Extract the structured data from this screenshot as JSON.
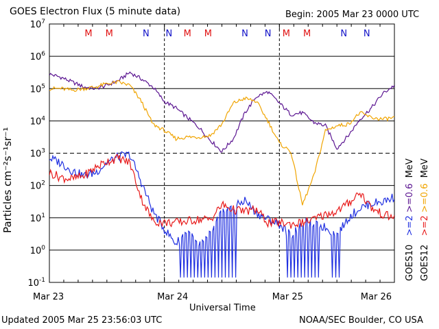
{
  "title": "GOES Electron Flux (5 minute data)",
  "begin_label": "Begin: 2005 Mar 23 0000 UTC",
  "updated_label": "Updated 2005 Mar 25 23:56:03 UTC",
  "credit": "NOAA/SEC Boulder, CO USA",
  "colors": {
    "g10_lt2": "#1f2fe0",
    "g12_lt2": "#e81b1b",
    "g10_gt06": "#5b1591",
    "g12_gt06": "#f0a400",
    "marker_m": "#e01010",
    "marker_n": "#1010c8"
  },
  "legend": {
    "goes10": {
      "sat": "GOES10",
      "lt2": ">=2",
      "gt06": ">=0.6",
      "unit": "MeV"
    },
    "goes12": {
      "sat": "GOES12",
      "lt2": ">=2",
      "gt06": ">=0.6",
      "unit": "MeV"
    }
  },
  "markers": [
    {
      "label": "M",
      "day": 0.34,
      "sat": "m"
    },
    {
      "label": "M",
      "day": 0.52,
      "sat": "m"
    },
    {
      "label": "N",
      "day": 0.84,
      "sat": "n"
    },
    {
      "label": "N",
      "day": 1.04,
      "sat": "n"
    },
    {
      "label": "M",
      "day": 1.2,
      "sat": "m"
    },
    {
      "label": "M",
      "day": 1.38,
      "sat": "m"
    },
    {
      "label": "N",
      "day": 1.7,
      "sat": "n"
    },
    {
      "label": "N",
      "day": 1.9,
      "sat": "n"
    },
    {
      "label": "M",
      "day": 2.06,
      "sat": "m"
    },
    {
      "label": "M",
      "day": 2.24,
      "sat": "m"
    },
    {
      "label": "N",
      "day": 2.56,
      "sat": "n"
    },
    {
      "label": "N",
      "day": 2.76,
      "sat": "n"
    }
  ],
  "chart_data": {
    "type": "line",
    "xlabel": "Universal Time",
    "ylabel": "Particles cm⁻²s⁻¹sr⁻¹",
    "xlim": [
      0,
      3
    ],
    "x_ticks": [
      {
        "label": "Mar 23",
        "day": 0
      },
      {
        "label": "Mar 24",
        "day": 1
      },
      {
        "label": "Mar 25",
        "day": 2
      },
      {
        "label": "Mar 26",
        "day": 3
      }
    ],
    "y_scale": "log",
    "ylim_exp": [
      -1,
      7
    ],
    "y_ticks": [
      {
        "label": "10",
        "exp": "-1",
        "value": -1
      },
      {
        "label": "10",
        "exp": "0",
        "value": 0
      },
      {
        "label": "10",
        "exp": "1",
        "value": 1
      },
      {
        "label": "10",
        "exp": "2",
        "value": 2
      },
      {
        "label": "10",
        "exp": "3",
        "value": 3
      },
      {
        "label": "10",
        "exp": "4",
        "value": 4
      },
      {
        "label": "10",
        "exp": "5",
        "value": 5
      },
      {
        "label": "10",
        "exp": "6",
        "value": 6
      },
      {
        "label": "10",
        "exp": "7",
        "value": 7
      }
    ],
    "series": [
      {
        "key": "g10_gt06",
        "name": "GOES10 >=0.6 MeV",
        "x": [
          0,
          0.1,
          0.2,
          0.3,
          0.4,
          0.5,
          0.6,
          0.7,
          0.8,
          0.9,
          1.0,
          1.1,
          1.2,
          1.3,
          1.4,
          1.5,
          1.6,
          1.7,
          1.8,
          1.9,
          2.0,
          2.1,
          2.2,
          2.3,
          2.4,
          2.5,
          2.6,
          2.7,
          2.8,
          2.9,
          3.0
        ],
        "log10": [
          5.45,
          5.35,
          5.2,
          5.05,
          5.0,
          5.1,
          5.25,
          5.5,
          5.3,
          5.05,
          4.6,
          4.4,
          4.1,
          3.8,
          3.4,
          3.05,
          3.45,
          4.25,
          4.75,
          4.9,
          4.55,
          4.2,
          4.25,
          3.95,
          3.85,
          3.15,
          3.55,
          4.05,
          4.4,
          4.85,
          5.1
        ]
      },
      {
        "key": "g12_gt06",
        "name": "GOES12 >=0.6 MeV",
        "x": [
          0,
          0.1,
          0.2,
          0.3,
          0.4,
          0.5,
          0.6,
          0.7,
          0.8,
          0.9,
          1.0,
          1.1,
          1.2,
          1.3,
          1.4,
          1.5,
          1.6,
          1.7,
          1.8,
          1.9,
          2.0,
          2.1,
          2.2,
          2.3,
          2.4,
          2.5,
          2.6,
          2.7,
          2.8,
          2.9,
          3.0
        ],
        "log10": [
          5.0,
          5.0,
          4.95,
          5.0,
          5.05,
          5.15,
          5.2,
          5.1,
          4.6,
          3.9,
          3.7,
          3.45,
          3.5,
          3.5,
          3.55,
          3.9,
          4.55,
          4.7,
          4.6,
          4.0,
          3.3,
          3.05,
          1.4,
          2.3,
          3.7,
          3.85,
          3.9,
          4.25,
          4.1,
          4.05,
          4.1
        ]
      },
      {
        "key": "g10_lt2",
        "name": "GOES10 >=2 MeV",
        "x": [
          0,
          0.1,
          0.2,
          0.3,
          0.4,
          0.5,
          0.6,
          0.7,
          0.8,
          0.9,
          1.0,
          1.1,
          1.2,
          1.3,
          1.4,
          1.5,
          1.6,
          1.7,
          1.8,
          1.9,
          2.0,
          2.1,
          2.2,
          2.3,
          2.4,
          2.5,
          2.6,
          2.7,
          2.8,
          2.9,
          3.0
        ],
        "log10": [
          2.85,
          2.7,
          2.45,
          2.3,
          2.4,
          2.7,
          2.9,
          2.95,
          2.1,
          1.2,
          0.65,
          0.2,
          0.6,
          0.1,
          0.5,
          1.2,
          1.3,
          1.55,
          1.15,
          0.95,
          0.8,
          0.45,
          0.85,
          0.8,
          0.7,
          0.45,
          1.0,
          1.3,
          1.45,
          1.5,
          1.65
        ]
      },
      {
        "key": "g12_lt2",
        "name": "GOES12 >=2 MeV",
        "x": [
          0,
          0.1,
          0.2,
          0.3,
          0.4,
          0.5,
          0.6,
          0.7,
          0.8,
          0.9,
          1.0,
          1.1,
          1.2,
          1.3,
          1.4,
          1.5,
          1.6,
          1.7,
          1.8,
          1.9,
          2.0,
          2.1,
          2.2,
          2.3,
          2.4,
          2.5,
          2.6,
          2.7,
          2.8,
          2.9,
          3.0
        ],
        "log10": [
          2.4,
          2.25,
          2.2,
          2.3,
          2.55,
          2.75,
          2.85,
          2.7,
          1.6,
          0.9,
          0.85,
          0.85,
          0.9,
          0.95,
          0.95,
          1.4,
          1.25,
          1.2,
          1.25,
          0.85,
          0.85,
          0.8,
          0.85,
          0.95,
          1.1,
          1.2,
          1.45,
          1.8,
          1.3,
          1.1,
          1.0
        ]
      }
    ],
    "dropouts": [
      {
        "key": "g10_lt2",
        "from": 1.12,
        "to": 1.62,
        "to_log10": -0.85
      },
      {
        "key": "g10_lt2",
        "from": 2.06,
        "to": 2.34,
        "to_log10": -0.85
      },
      {
        "key": "g10_lt2",
        "from": 2.44,
        "to": 2.54,
        "to_log10": -0.85
      }
    ],
    "grid": "horizontal at each decade; dashed vertical day lines"
  }
}
